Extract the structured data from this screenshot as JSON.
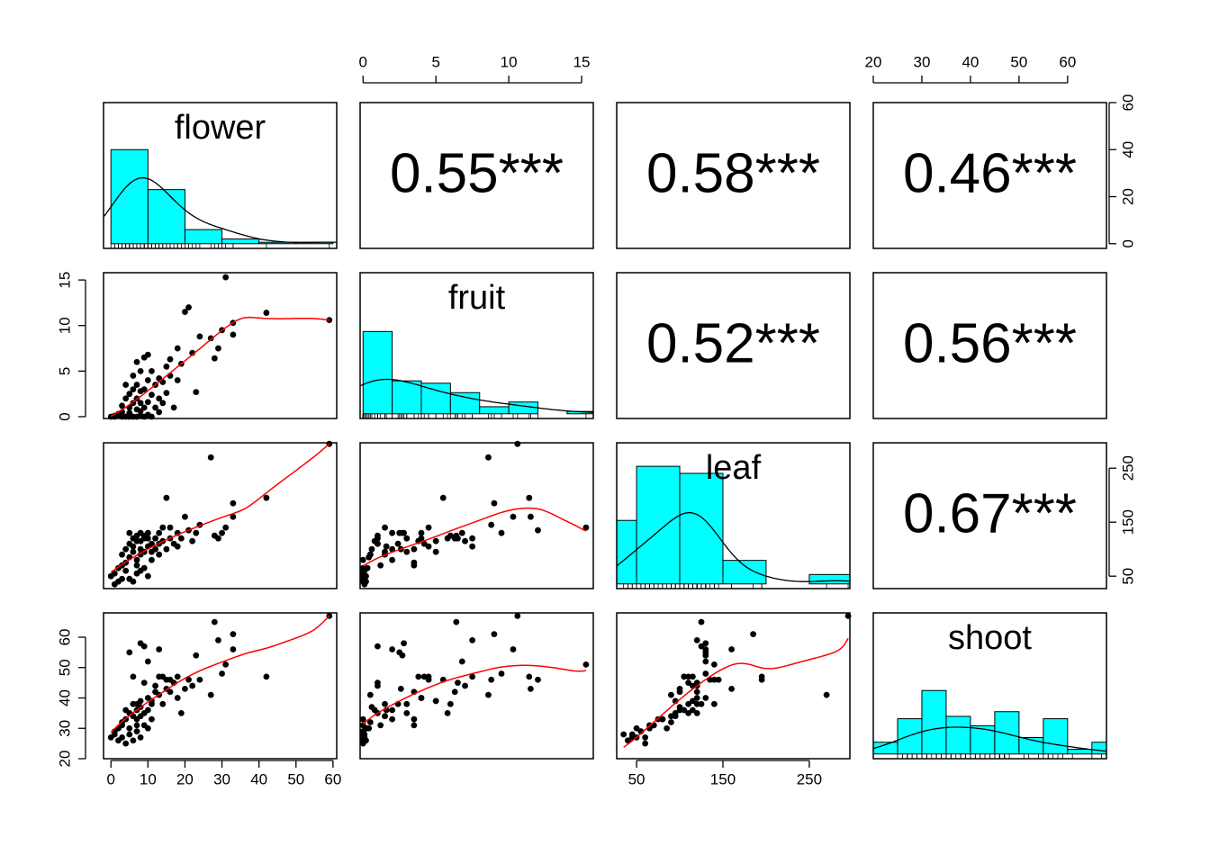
{
  "chart_data": {
    "type": "scatter",
    "layout": "scatterplot-matrix",
    "variables": [
      {
        "name": "flower",
        "range": [
          -2,
          61
        ],
        "ticks": [
          0,
          10,
          20,
          30,
          40,
          50,
          60
        ]
      },
      {
        "name": "fruit",
        "range": [
          -0.2,
          15.8
        ],
        "ticks": [
          0,
          5,
          10,
          15
        ]
      },
      {
        "name": "leaf",
        "range": [
          27,
          297
        ],
        "ticks": [
          50,
          150,
          250
        ]
      },
      {
        "name": "shoot",
        "range": [
          20,
          68
        ],
        "ticks": [
          20,
          30,
          40,
          50,
          60
        ]
      }
    ],
    "hist_count_axis": {
      "range": [
        -2,
        60
      ],
      "ticks": [
        0,
        20,
        40,
        60
      ]
    },
    "correlations": [
      {
        "row": 0,
        "col": 1,
        "label": "0.55***"
      },
      {
        "row": 0,
        "col": 2,
        "label": "0.58***"
      },
      {
        "row": 0,
        "col": 3,
        "label": "0.46***"
      },
      {
        "row": 1,
        "col": 2,
        "label": "0.52***"
      },
      {
        "row": 1,
        "col": 3,
        "label": "0.56***"
      },
      {
        "row": 2,
        "col": 3,
        "label": "0.67***"
      }
    ],
    "histograms": [
      {
        "variable": "flower",
        "bins": [
          [
            0,
            10
          ],
          [
            10,
            20
          ],
          [
            20,
            30
          ],
          [
            30,
            40
          ],
          [
            40,
            50
          ],
          [
            50,
            60
          ]
        ],
        "counts": [
          40,
          23,
          6,
          2,
          0.6,
          0.6
        ]
      },
      {
        "variable": "fruit",
        "bins": [
          [
            0,
            2
          ],
          [
            2,
            4
          ],
          [
            4,
            6
          ],
          [
            6,
            8
          ],
          [
            8,
            10
          ],
          [
            10,
            12
          ],
          [
            12,
            14
          ],
          [
            14,
            16
          ]
        ],
        "counts": [
          35,
          14,
          13,
          9,
          3,
          5,
          0,
          1
        ]
      },
      {
        "variable": "leaf",
        "bins": [
          [
            0,
            50
          ],
          [
            50,
            100
          ],
          [
            100,
            150
          ],
          [
            150,
            200
          ],
          [
            200,
            250
          ],
          [
            250,
            300
          ]
        ],
        "counts": [
          27,
          50,
          47,
          10,
          0,
          4
        ]
      },
      {
        "variable": "shoot",
        "bins": [
          [
            20,
            25
          ],
          [
            25,
            30
          ],
          [
            30,
            35
          ],
          [
            35,
            40
          ],
          [
            40,
            45
          ],
          [
            45,
            50
          ],
          [
            50,
            55
          ],
          [
            55,
            60
          ],
          [
            60,
            65
          ],
          [
            65,
            70
          ]
        ],
        "counts": [
          5,
          15,
          27,
          16,
          12,
          18,
          7,
          15,
          2,
          5
        ]
      }
    ],
    "observations": {
      "flower": [
        0,
        1,
        1,
        2,
        2,
        3,
        3,
        3,
        4,
        4,
        4,
        5,
        5,
        5,
        5,
        6,
        6,
        6,
        6,
        7,
        7,
        7,
        7,
        7,
        8,
        8,
        8,
        8,
        8,
        9,
        9,
        9,
        9,
        10,
        10,
        10,
        10,
        11,
        11,
        11,
        12,
        12,
        13,
        13,
        13,
        14,
        14,
        15,
        15,
        16,
        16,
        17,
        18,
        18,
        19,
        20,
        21,
        22,
        23,
        24,
        27,
        28,
        29,
        30,
        31,
        33,
        33,
        42,
        59
      ],
      "fruit": [
        0,
        0.1,
        0,
        0.2,
        0.3,
        0,
        0.5,
        1.2,
        0,
        2,
        3.5,
        0,
        0.4,
        1,
        2.5,
        0,
        1.5,
        3,
        4.5,
        0,
        0.8,
        2,
        3.5,
        6,
        0.1,
        0.6,
        1.5,
        2.8,
        5,
        0,
        1,
        3,
        6.5,
        0.2,
        1.6,
        4,
        6.8,
        0,
        2.4,
        5,
        1,
        3.5,
        0.5,
        2,
        4.2,
        1.5,
        3.8,
        2.6,
        5.5,
        6.3,
        4.5,
        1,
        4,
        7.5,
        5.8,
        11.5,
        12,
        7,
        2.7,
        8.8,
        8.6,
        6.4,
        7.5,
        9.5,
        15.3,
        10.3,
        9,
        11.4,
        10.6
      ],
      "leaf": [
        50,
        35,
        55,
        40,
        65,
        45,
        90,
        70,
        60,
        100,
        75,
        45,
        85,
        110,
        130,
        40,
        95,
        120,
        105,
        55,
        115,
        80,
        70,
        125,
        60,
        100,
        90,
        130,
        115,
        65,
        125,
        95,
        120,
        50,
        105,
        120,
        130,
        80,
        110,
        95,
        120,
        100,
        90,
        130,
        110,
        140,
        115,
        100,
        195,
        120,
        140,
        110,
        130,
        105,
        120,
        160,
        135,
        115,
        130,
        145,
        270,
        125,
        120,
        130,
        140,
        160,
        185,
        195,
        295
      ],
      "shoot": [
        27,
        28,
        29,
        26,
        30,
        27,
        32,
        31,
        25,
        36,
        33,
        28,
        30,
        35,
        55,
        26,
        34,
        38,
        47,
        29,
        36,
        33,
        31,
        38,
        27,
        37,
        34,
        58,
        39,
        31,
        57,
        35,
        45,
        30,
        36,
        40,
        52,
        33,
        38,
        39,
        44,
        42,
        41,
        56,
        47,
        38,
        47,
        43,
        46,
        42,
        46,
        45,
        40,
        47,
        35,
        43,
        46,
        44,
        54,
        46,
        41,
        65,
        59,
        48,
        51,
        56,
        61,
        47,
        67
      ]
    }
  }
}
